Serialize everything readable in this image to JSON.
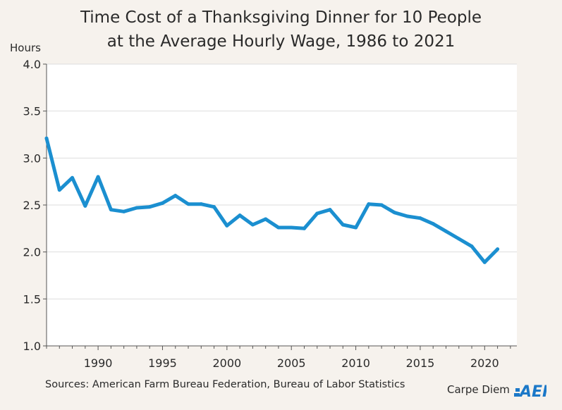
{
  "title_line1": "Time Cost of a Thanksgiving Dinner for 10 People",
  "title_line2": "at the Average Hourly Wage, 1986 to 2021",
  "source": "Sources: American Farm Bureau Federation, Bureau of Labor Statistics",
  "brand_text": "Carpe Diem",
  "logo_text": "AEI",
  "colors": {
    "line": "#1b8fd0",
    "plot_bg": "#ffffff",
    "page_bg": "#f6f2ed",
    "grid": "#dddddd",
    "logo": "#1b78c8"
  },
  "chart_data": {
    "type": "line",
    "title": "Time Cost of a Thanksgiving Dinner for 10 People at the Average Hourly Wage, 1986 to 2021",
    "ylabel": "Hours",
    "xlabel": "",
    "xlim": [
      1986,
      2022.5
    ],
    "ylim": [
      1.0,
      4.0
    ],
    "y_ticks": [
      1.0,
      1.5,
      2.0,
      2.5,
      3.0,
      3.5,
      4.0
    ],
    "y_tick_labels": [
      "1.0",
      "1.5",
      "2.0",
      "2.5",
      "3.0",
      "3.5",
      "4.0"
    ],
    "x_ticks": [
      1990,
      1995,
      2000,
      2005,
      2010,
      2015,
      2020
    ],
    "x_tick_labels": [
      "1990",
      "1995",
      "2000",
      "2005",
      "2010",
      "2015",
      "2020"
    ],
    "grid": "horizontal",
    "series": [
      {
        "x": [
          1986,
          1987,
          1988,
          1989,
          1990,
          1991,
          1992,
          1993,
          1994,
          1995,
          1996,
          1997,
          1998,
          1999,
          2000,
          2001,
          2002,
          2003,
          2004,
          2005,
          2006,
          2007,
          2008,
          2009,
          2010,
          2011,
          2012,
          2013,
          2014,
          2015,
          2016,
          2017,
          2018,
          2019,
          2020,
          2021
        ],
        "values": [
          3.21,
          2.66,
          2.79,
          2.49,
          2.8,
          2.45,
          2.43,
          2.47,
          2.48,
          2.52,
          2.6,
          2.51,
          2.51,
          2.48,
          2.28,
          2.39,
          2.29,
          2.35,
          2.26,
          2.26,
          2.25,
          2.41,
          2.45,
          2.29,
          2.26,
          2.51,
          2.5,
          2.42,
          2.38,
          2.36,
          2.3,
          2.22,
          2.14,
          2.06,
          1.89,
          2.03
        ]
      }
    ]
  }
}
